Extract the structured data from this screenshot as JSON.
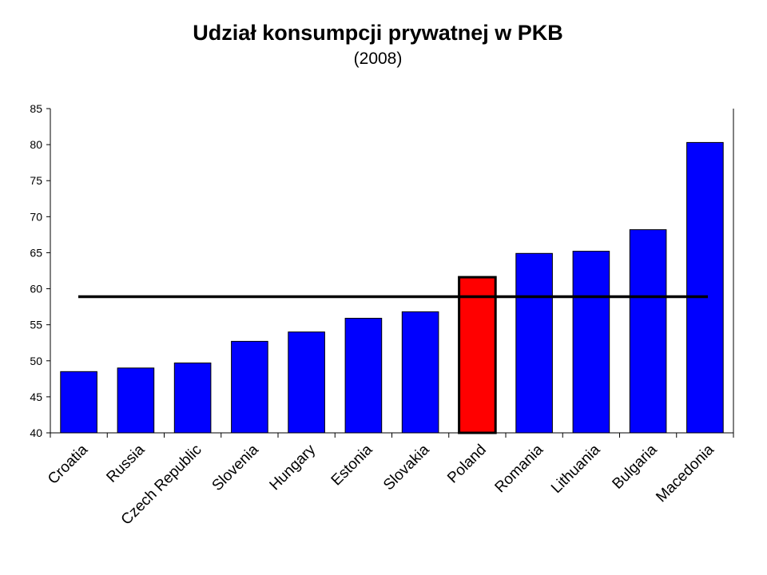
{
  "chart_data": {
    "type": "bar",
    "title": "Udział konsumpcji prywatnej w PKB",
    "subtitle": "(2008)",
    "xlabel": "",
    "ylabel": "",
    "categories": [
      "Croatia",
      "Russia",
      "Czech Republic",
      "Slovenia",
      "Hungary",
      "Estonia",
      "Slovakia",
      "Poland",
      "Romania",
      "Lithuania",
      "Bulgaria",
      "Macedonia"
    ],
    "values": [
      48.5,
      49.0,
      49.7,
      52.7,
      54.0,
      55.9,
      56.8,
      61.6,
      64.9,
      65.2,
      68.2,
      80.3
    ],
    "bar_colors": [
      "#0000ff",
      "#0000ff",
      "#0000ff",
      "#0000ff",
      "#0000ff",
      "#0000ff",
      "#0000ff",
      "#ff0000",
      "#0000ff",
      "#0000ff",
      "#0000ff",
      "#0000ff"
    ],
    "highlighted_category": "Poland",
    "reference_line": 58.9,
    "reference_line_color": "#000000",
    "ylim": [
      40,
      85
    ],
    "yticks": [
      40,
      45,
      50,
      55,
      60,
      65,
      70,
      75,
      80,
      85
    ],
    "grid": false,
    "legend": "none"
  }
}
